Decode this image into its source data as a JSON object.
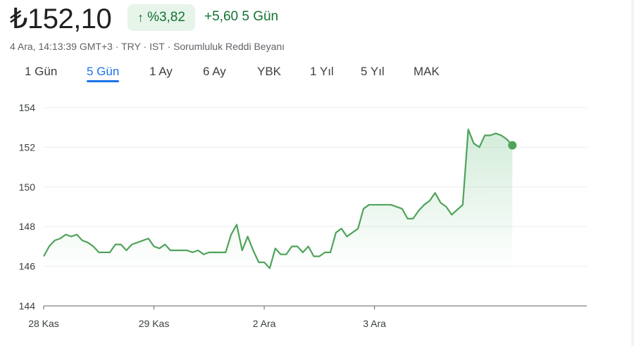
{
  "header": {
    "price": "₺152,10",
    "change_percent": "%3,82",
    "change_arrow": "↑",
    "change_abs": "+5,60",
    "change_period": "5 Gün",
    "meta": [
      "4 Ara, 14:13:39 GMT+3",
      "TRY",
      "IST",
      "Sorumluluk Reddi Beyanı"
    ]
  },
  "tabs": [
    {
      "label": "1 Gün",
      "active": false
    },
    {
      "label": "5 Gün",
      "active": true
    },
    {
      "label": "1 Ay",
      "active": false
    },
    {
      "label": "6 Ay",
      "active": false
    },
    {
      "label": "YBK",
      "active": false
    },
    {
      "label": "1 Yıl",
      "active": false
    },
    {
      "label": "5 Yıl",
      "active": false
    },
    {
      "label": "MAK",
      "active": false
    }
  ],
  "colors": {
    "line": "#4fa35a",
    "fill": "#34a853",
    "grid": "#eeeeee",
    "axis": "#5f6368",
    "tab_active": "#1a73e8"
  },
  "chart_data": {
    "type": "area",
    "ylim": [
      144,
      154
    ],
    "yticks": [
      144,
      146,
      148,
      150,
      152,
      154
    ],
    "xticks": [
      {
        "label": "28 Kas",
        "x": 0
      },
      {
        "label": "29 Kas",
        "x": 20
      },
      {
        "label": "2 Ara",
        "x": 40
      },
      {
        "label": "3 Ara",
        "x": 60
      }
    ],
    "x_max": 98.5,
    "series": [
      {
        "values": [
          [
            0,
            146.5
          ],
          [
            1,
            147.0
          ],
          [
            2,
            147.3
          ],
          [
            3,
            147.4
          ],
          [
            4,
            147.6
          ],
          [
            5,
            147.5
          ],
          [
            6,
            147.6
          ],
          [
            7,
            147.3
          ],
          [
            8,
            147.2
          ],
          [
            9,
            147.0
          ],
          [
            10,
            146.7
          ],
          [
            11,
            146.7
          ],
          [
            12,
            146.7
          ],
          [
            13,
            147.1
          ],
          [
            14,
            147.1
          ],
          [
            15,
            146.8
          ],
          [
            16,
            147.1
          ],
          [
            17,
            147.2
          ],
          [
            19,
            147.4
          ],
          [
            20,
            147.0
          ],
          [
            21,
            146.9
          ],
          [
            22,
            147.1
          ],
          [
            23,
            146.8
          ],
          [
            24,
            146.8
          ],
          [
            26,
            146.8
          ],
          [
            27,
            146.7
          ],
          [
            28,
            146.8
          ],
          [
            29,
            146.6
          ],
          [
            30,
            146.7
          ],
          [
            31,
            146.7
          ],
          [
            33,
            146.7
          ],
          [
            34,
            147.6
          ],
          [
            35,
            148.1
          ],
          [
            36,
            146.8
          ],
          [
            37,
            147.5
          ],
          [
            38,
            146.8
          ],
          [
            39,
            146.2
          ],
          [
            40,
            146.2
          ],
          [
            41,
            145.9
          ],
          [
            42,
            146.9
          ],
          [
            43,
            146.6
          ],
          [
            44,
            146.6
          ],
          [
            45,
            147.0
          ],
          [
            46,
            147.0
          ],
          [
            47,
            146.7
          ],
          [
            48,
            147.0
          ],
          [
            49,
            146.5
          ],
          [
            50,
            146.5
          ],
          [
            51,
            146.7
          ],
          [
            52,
            146.7
          ],
          [
            53,
            147.7
          ],
          [
            54,
            147.9
          ],
          [
            55,
            147.5
          ],
          [
            57,
            147.9
          ],
          [
            58,
            148.9
          ],
          [
            59,
            149.1
          ],
          [
            60,
            149.1
          ],
          [
            62,
            149.1
          ],
          [
            63,
            149.1
          ],
          [
            65,
            148.9
          ],
          [
            66,
            148.4
          ],
          [
            67,
            148.4
          ],
          [
            68,
            148.8
          ],
          [
            69,
            149.1
          ],
          [
            70,
            149.3
          ],
          [
            71,
            149.7
          ],
          [
            72,
            149.2
          ],
          [
            73,
            149.0
          ],
          [
            74,
            148.6
          ],
          [
            76,
            149.1
          ],
          [
            77,
            152.9
          ],
          [
            78,
            152.2
          ],
          [
            79,
            152.0
          ],
          [
            80,
            152.6
          ],
          [
            81,
            152.6
          ],
          [
            82,
            152.7
          ],
          [
            83,
            152.6
          ],
          [
            84,
            152.4
          ],
          [
            85,
            152.1
          ]
        ]
      }
    ]
  }
}
